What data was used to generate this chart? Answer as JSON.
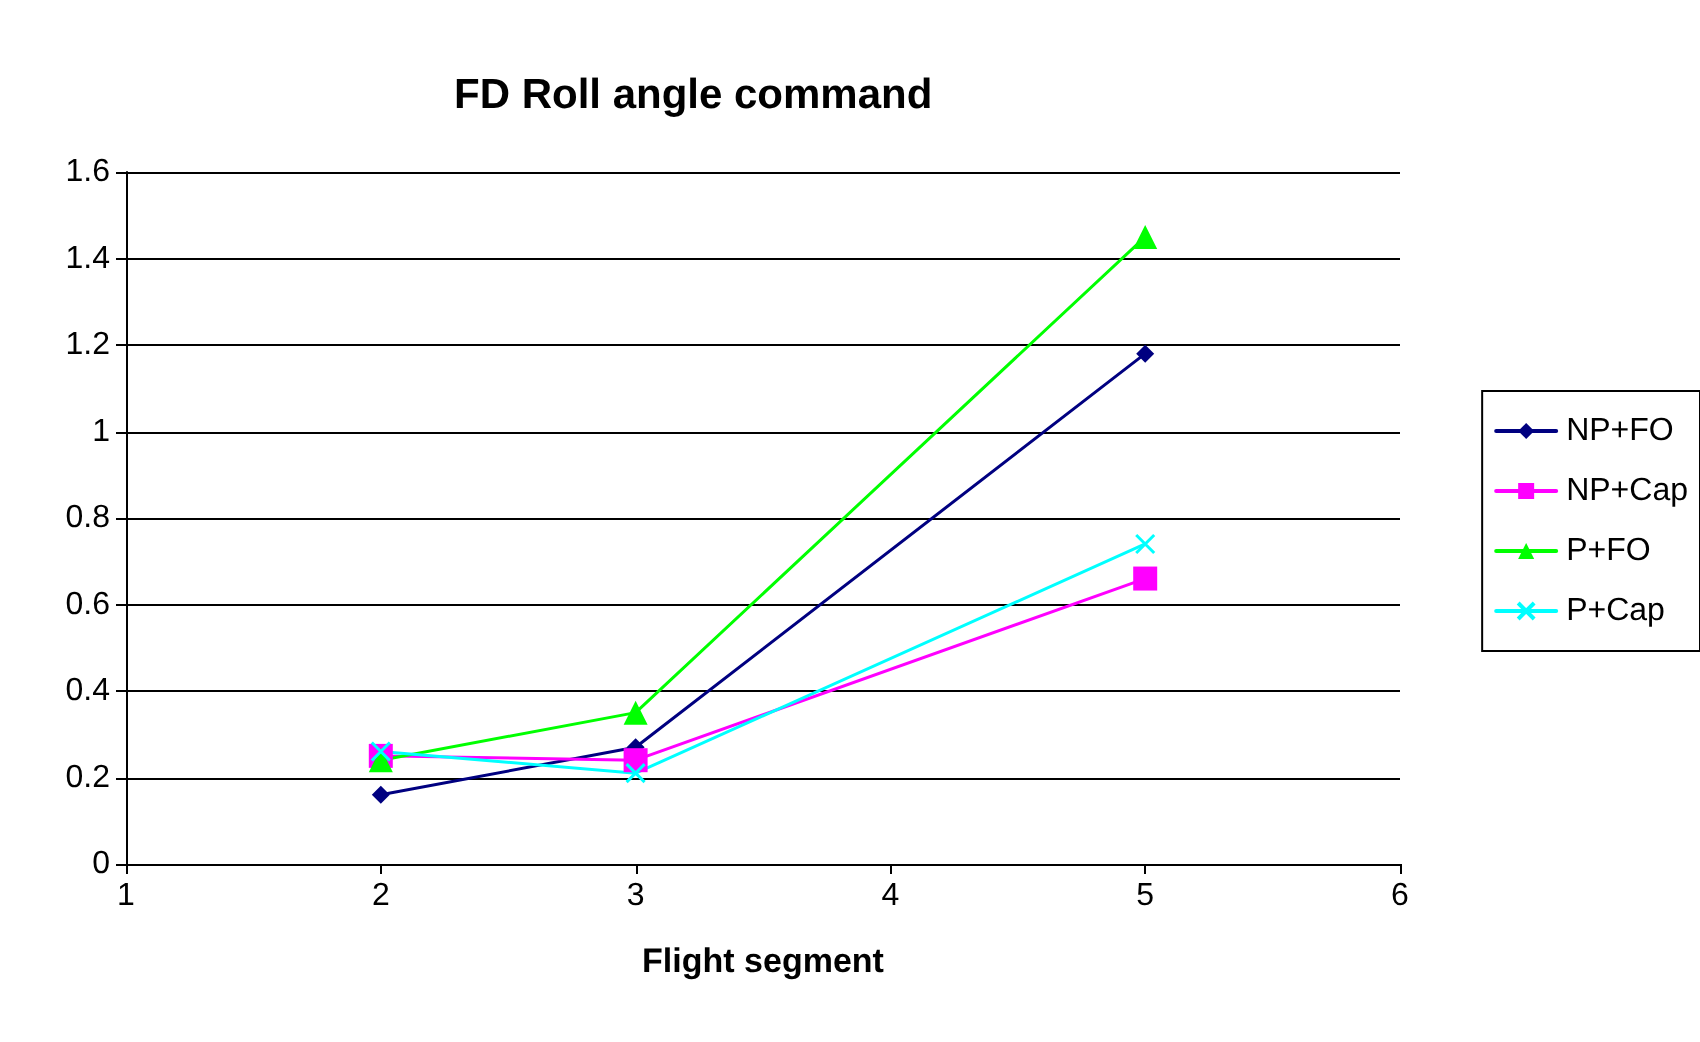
{
  "chart_data": {
    "type": "line",
    "title": "FD Roll angle command",
    "xlabel": "Flight segment",
    "x": [
      2,
      3,
      5
    ],
    "series": [
      {
        "name": "NP+FO",
        "color": "#000080",
        "marker": "diamond",
        "values": [
          0.16,
          0.27,
          1.18
        ]
      },
      {
        "name": "NP+Cap",
        "color": "#ff00ff",
        "marker": "square",
        "values": [
          0.25,
          0.24,
          0.66
        ]
      },
      {
        "name": "P+FO",
        "color": "#00ff00",
        "marker": "triangle",
        "values": [
          0.24,
          0.35,
          1.45
        ]
      },
      {
        "name": "P+Cap",
        "color": "#00ffff",
        "marker": "cross",
        "values": [
          0.26,
          0.21,
          0.74
        ]
      }
    ],
    "xlim": [
      1,
      6
    ],
    "xticks": [
      1,
      2,
      3,
      4,
      5,
      6
    ],
    "ylim": [
      0,
      1.6
    ],
    "yticks": [
      0,
      0.2,
      0.4,
      0.6,
      0.8,
      1,
      1.2,
      1.4,
      1.6
    ],
    "grid": "y",
    "legend": "right"
  }
}
